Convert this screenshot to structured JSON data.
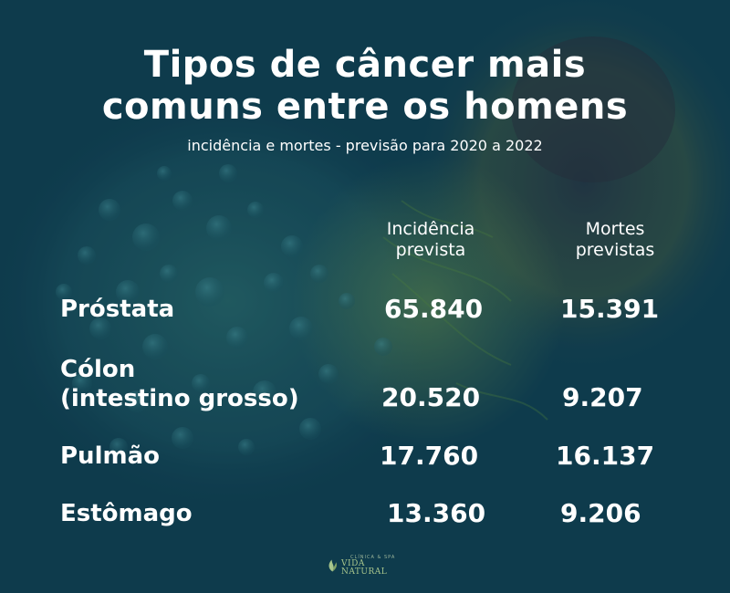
{
  "title": {
    "line1": "Tipos de câncer mais",
    "line2": "comuns entre os homens"
  },
  "subtitle": "incidência e mortes - previsão para 2020 a 2022",
  "columns": {
    "incidence": {
      "line1": "Incidência",
      "line2": "prevista"
    },
    "deaths": {
      "line1": "Mortes",
      "line2": "previstas"
    }
  },
  "rows": [
    {
      "label": "Próstata",
      "incidence": "65.840",
      "deaths": "15.391"
    },
    {
      "label_line1": "Cólon",
      "label_line2": "(intestino grosso)",
      "incidence": "20.520",
      "deaths": "9.207"
    },
    {
      "label": "Pulmão",
      "incidence": "17.760",
      "deaths": "16.137"
    },
    {
      "label": "Estômago",
      "incidence": "13.360",
      "deaths": "9.206"
    }
  ],
  "logo": {
    "small": "CLÍNICA & SPA",
    "main": "VIDA NATURAL"
  },
  "colors": {
    "background": "#0e3b4d",
    "text": "#ffffff",
    "logo_green": "#a7c58c"
  }
}
